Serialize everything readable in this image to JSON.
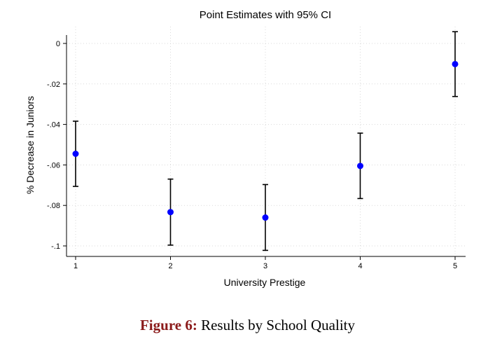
{
  "chart_data": {
    "type": "scatter",
    "title": "Point Estimates with 95% CI",
    "xlabel": "University Prestige",
    "ylabel": "% Decrease in Juniors",
    "x": [
      1,
      2,
      3,
      4,
      5
    ],
    "x_ticks": [
      "1",
      "2",
      "3",
      "4",
      "5"
    ],
    "y_ticks": [
      0,
      -0.02,
      -0.04,
      -0.06,
      -0.08,
      -0.1
    ],
    "y_tick_labels": [
      "0",
      "-.02",
      "-.04",
      "-.06",
      "-.08",
      "-.1"
    ],
    "xlim": [
      1,
      5
    ],
    "ylim": [
      -0.1,
      0
    ],
    "grid": true,
    "series": [
      {
        "estimate": [
          -0.0545,
          -0.0833,
          -0.086,
          -0.0605,
          -0.0102
        ],
        "ci_upper": [
          -0.0384,
          -0.067,
          -0.0697,
          -0.0443,
          0.0058
        ],
        "ci_lower": [
          -0.0706,
          -0.0996,
          -0.1022,
          -0.0766,
          -0.0262
        ]
      }
    ],
    "colors": {
      "point": "#0000ff",
      "ci": "#000000",
      "grid": "#d9d9d9"
    }
  },
  "caption": {
    "label": "Figure 6:",
    "text": "Results by School Quality"
  }
}
